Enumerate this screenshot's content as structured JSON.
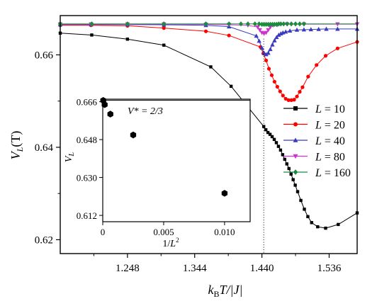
{
  "chart_data": [
    {
      "type": "line",
      "xlabel": "kBT/|J|",
      "xlabel_parts": {
        "k": "k",
        "sub": "B",
        "rest": "T/|J|"
      },
      "ylabel": "VL(T)",
      "ylabel_parts": {
        "main": "V",
        "sub": "L",
        "rest": "(T)"
      },
      "xlim": [
        1.152,
        1.576
      ],
      "ylim": [
        0.617,
        0.6685
      ],
      "xticks": [
        1.248,
        1.344,
        1.44,
        1.536
      ],
      "xtick_labels": [
        "1.248",
        "1.344",
        "1.440",
        "1.536"
      ],
      "yticks": [
        0.62,
        0.64,
        0.66
      ],
      "ytick_labels": [
        "0.62",
        "0.64",
        "0.66"
      ],
      "reference_line": {
        "x": 1.4426,
        "style": "dotted"
      },
      "legend_position": "right",
      "series": [
        {
          "name": "L = 10",
          "label": "L",
          "size": "10",
          "color": "#000000",
          "marker": "square",
          "x": [
            1.152,
            1.197,
            1.248,
            1.3,
            1.367,
            1.396,
            1.4426,
            1.4456,
            1.4486,
            1.4516,
            1.4546,
            1.4576,
            1.4606,
            1.4636,
            1.4666,
            1.4696,
            1.4726,
            1.4756,
            1.4786,
            1.4816,
            1.4846,
            1.4876,
            1.491,
            1.4956,
            1.5006,
            1.5056,
            1.511,
            1.5196,
            1.531,
            1.549,
            1.576
          ],
          "y": [
            0.6647,
            0.6643,
            0.6634,
            0.6621,
            0.6574,
            0.6532,
            0.6445,
            0.6438,
            0.6432,
            0.6428,
            0.6423,
            0.6417,
            0.641,
            0.6402,
            0.6394,
            0.6384,
            0.6374,
            0.6364,
            0.6354,
            0.6342,
            0.633,
            0.6318,
            0.6304,
            0.6285,
            0.6266,
            0.625,
            0.6237,
            0.6228,
            0.6225,
            0.6233,
            0.6258
          ]
        },
        {
          "name": "L = 20",
          "label": "L",
          "size": "20",
          "color": "#ff0000",
          "marker": "circle",
          "x": [
            1.152,
            1.196,
            1.248,
            1.3,
            1.36,
            1.393,
            1.438,
            1.442,
            1.446,
            1.45,
            1.454,
            1.458,
            1.462,
            1.466,
            1.47,
            1.474,
            1.478,
            1.482,
            1.486,
            1.49,
            1.494,
            1.498,
            1.506,
            1.518,
            1.531,
            1.548,
            1.576
          ],
          "y": [
            0.6664,
            0.6664,
            0.6663,
            0.6658,
            0.6651,
            0.6642,
            0.6617,
            0.6603,
            0.6588,
            0.657,
            0.6556,
            0.6542,
            0.6531,
            0.6521,
            0.6512,
            0.6505,
            0.6502,
            0.6502,
            0.6503,
            0.651,
            0.652,
            0.653,
            0.6553,
            0.6578,
            0.6598,
            0.6614,
            0.6628
          ]
        },
        {
          "name": "L = 40",
          "label": "L",
          "size": "40",
          "color": "#3a3abf",
          "marker": "triangle",
          "x": [
            1.152,
            1.196,
            1.248,
            1.3,
            1.36,
            1.393,
            1.432,
            1.436,
            1.44,
            1.443,
            1.446,
            1.449,
            1.452,
            1.455,
            1.458,
            1.461,
            1.464,
            1.467,
            1.47,
            1.474,
            1.48,
            1.49,
            1.5,
            1.51,
            1.521,
            1.532,
            1.548,
            1.576
          ],
          "y": [
            0.66655,
            0.66655,
            0.66655,
            0.6665,
            0.6664,
            0.6661,
            0.6641,
            0.663,
            0.6615,
            0.6604,
            0.6601,
            0.6604,
            0.6612,
            0.6622,
            0.6631,
            0.6638,
            0.6643,
            0.6646,
            0.6648,
            0.665,
            0.6652,
            0.6654,
            0.66545,
            0.6655,
            0.66555,
            0.6656,
            0.6656,
            0.6656
          ]
        },
        {
          "name": "L = 80",
          "label": "L",
          "size": "80",
          "color": "#cc33cc",
          "marker": "triangle-down",
          "x": [
            1.152,
            1.196,
            1.248,
            1.3,
            1.36,
            1.393,
            1.42,
            1.434,
            1.437,
            1.44,
            1.443,
            1.446,
            1.449,
            1.452,
            1.456,
            1.462,
            1.476,
            1.5,
            1.548,
            1.576
          ],
          "y": [
            0.66665,
            0.66665,
            0.66665,
            0.66665,
            0.6666,
            0.6665,
            0.6664,
            0.666,
            0.6654,
            0.6648,
            0.6646,
            0.6648,
            0.6654,
            0.666,
            0.6664,
            0.6665,
            0.66665,
            0.66665,
            0.66665,
            0.66665
          ],
          "line_end": 1.476
        },
        {
          "name": "L = 160",
          "label": "L",
          "size": "160",
          "color": "#1a8c3c",
          "marker": "diamond",
          "x": [
            1.152,
            1.197,
            1.248,
            1.3,
            1.36,
            1.393,
            1.41,
            1.42,
            1.43,
            1.436,
            1.44,
            1.443,
            1.446,
            1.449,
            1.452,
            1.455,
            1.458,
            1.461,
            1.464,
            1.467,
            1.471,
            1.476,
            1.482,
            1.488,
            1.494,
            1.5
          ],
          "y": [
            0.6667,
            0.6667,
            0.6667,
            0.6667,
            0.6667,
            0.6667,
            0.6667,
            0.6667,
            0.6667,
            0.6667,
            0.6666,
            0.6666,
            0.6666,
            0.6666,
            0.6666,
            0.6666,
            0.6666,
            0.6666,
            0.6667,
            0.6667,
            0.6667,
            0.6667,
            0.6667,
            0.6667,
            0.6667,
            0.6667
          ],
          "line_end": 1.5
        }
      ]
    },
    {
      "type": "scatter",
      "role": "inset",
      "xlabel": "1/L2",
      "xlabel_parts": {
        "main": "1/",
        "var": "L",
        "sup": "2"
      },
      "ylabel": "VL",
      "ylabel_parts": {
        "main": "V",
        "sub": "L"
      },
      "xlim": [
        0,
        0.0121
      ],
      "ylim": [
        0.609,
        0.6672
      ],
      "xticks": [
        0,
        0.005,
        0.01
      ],
      "xtick_labels": [
        "0",
        "0.005",
        "0.010"
      ],
      "yticks": [
        0.612,
        0.63,
        0.648,
        0.666
      ],
      "ytick_labels": [
        "0.612",
        "0.630",
        "0.648",
        "0.666"
      ],
      "hline": {
        "y": 0.66667
      },
      "annotation": "V* = 2/3",
      "points": [
        {
          "x": 3.91e-05,
          "y": 0.6666
        },
        {
          "x": 0.000156,
          "y": 0.6646
        },
        {
          "x": 0.000625,
          "y": 0.6601
        },
        {
          "x": 0.0025,
          "y": 0.6502
        },
        {
          "x": 0.01,
          "y": 0.6225
        }
      ]
    }
  ]
}
